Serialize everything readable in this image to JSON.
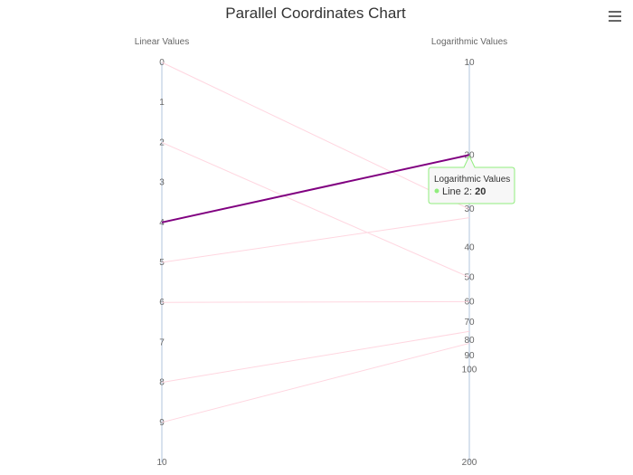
{
  "chart_data": {
    "type": "line",
    "title": "Parallel Coordinates Chart",
    "axes": [
      {
        "title": "Linear Values",
        "scale": "linear",
        "range": [
          0,
          10
        ],
        "ticks": [
          "0",
          "1",
          "2",
          "3",
          "4",
          "5",
          "6",
          "7",
          "8",
          "9",
          "10"
        ]
      },
      {
        "title": "Logarithmic Values",
        "scale": "log",
        "range": [
          10,
          200
        ],
        "ticks": [
          "10",
          "20",
          "30",
          "40",
          "50",
          "60",
          "70",
          "80",
          "90",
          "100",
          "200"
        ]
      }
    ],
    "series": [
      {
        "values": [
          0,
          30
        ]
      },
      {
        "values": [
          2,
          50
        ]
      },
      {
        "name": "Line 2",
        "values": [
          4,
          20
        ],
        "highlighted": true
      },
      {
        "values": [
          5,
          32
        ]
      },
      {
        "values": [
          6,
          60
        ]
      },
      {
        "values": [
          8,
          75
        ]
      },
      {
        "values": [
          9,
          82
        ]
      }
    ],
    "colors": {
      "line": "#ffd6e0",
      "highlight": "#800080",
      "axis": "#b0c4de",
      "tooltip_border": "#90ed7d"
    },
    "tooltip": {
      "header": "Logarithmic Values",
      "label": "Line 2: ",
      "value": "20"
    }
  },
  "menu": {
    "icon": "hamburger-menu-icon"
  }
}
